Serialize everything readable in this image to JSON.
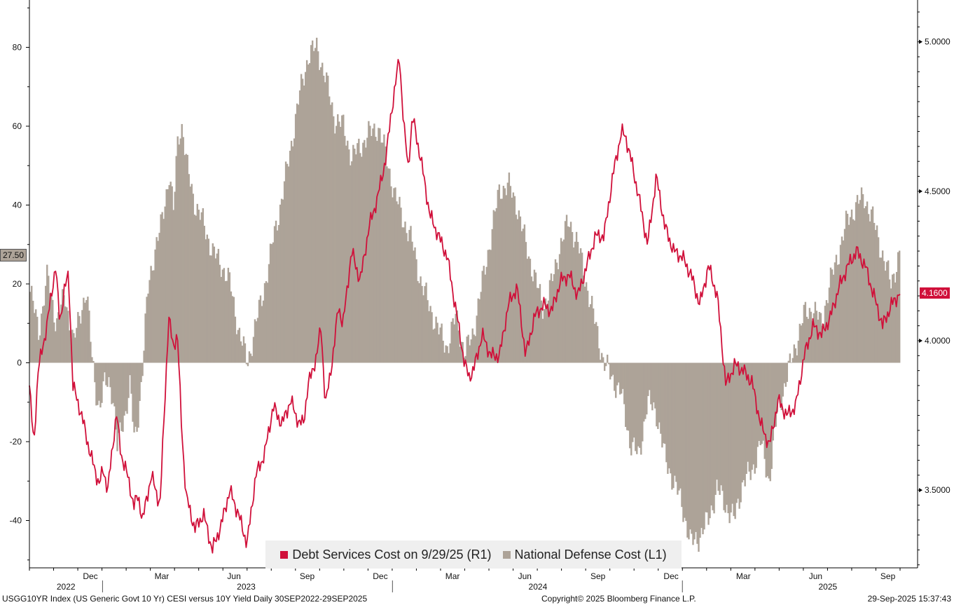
{
  "chart_data": {
    "type": "bar+line",
    "colors": {
      "bars": "#ada398",
      "line": "#d0103a",
      "axis": "#000000"
    },
    "left_axis": {
      "ticks": [
        -40,
        -20,
        0,
        20,
        40,
        60,
        80
      ],
      "range": [
        -52,
        92
      ]
    },
    "right_axis": {
      "ticks": [
        "3.5000",
        "4.0000",
        "4.5000",
        "5.0000"
      ],
      "values": [
        3.5,
        4.0,
        4.5,
        5.0
      ],
      "range": [
        3.24,
        5.14
      ]
    },
    "x_labels": [
      {
        "label": "Dec",
        "t": 0.07
      },
      {
        "label": "Mar",
        "t": 0.152
      },
      {
        "label": "Jun",
        "t": 0.235
      },
      {
        "label": "Sep",
        "t": 0.319
      },
      {
        "label": "Dec",
        "t": 0.403
      },
      {
        "label": "Mar",
        "t": 0.486
      },
      {
        "label": "Jun",
        "t": 0.569
      },
      {
        "label": "Sep",
        "t": 0.653
      },
      {
        "label": "Dec",
        "t": 0.737
      },
      {
        "label": "Mar",
        "t": 0.82
      },
      {
        "label": "Jun",
        "t": 0.903
      },
      {
        "label": "Sep",
        "t": 0.986
      }
    ],
    "year_labels": [
      {
        "label": "2022",
        "t": 0.042
      },
      {
        "label": "2023",
        "t": 0.249
      },
      {
        "label": "2024",
        "t": 0.584
      },
      {
        "label": "2025",
        "t": 0.917
      }
    ],
    "year_dividers": [
      0.084,
      0.417,
      0.75
    ],
    "series": [
      {
        "name": "National Defense Cost (L1)",
        "axis": "left",
        "points": [
          [
            0,
            18
          ],
          [
            0.01,
            8
          ],
          [
            0.02,
            22
          ],
          [
            0.03,
            10
          ],
          [
            0.04,
            17
          ],
          [
            0.05,
            5
          ],
          [
            0.06,
            15
          ],
          [
            0.065,
            18
          ],
          [
            0.07,
            4
          ],
          [
            0.075,
            -6
          ],
          [
            0.08,
            -12
          ],
          [
            0.085,
            -6
          ],
          [
            0.09,
            -4
          ],
          [
            0.095,
            -8
          ],
          [
            0.1,
            -22
          ],
          [
            0.105,
            -16
          ],
          [
            0.11,
            -12
          ],
          [
            0.115,
            -6
          ],
          [
            0.12,
            -20
          ],
          [
            0.125,
            -12
          ],
          [
            0.13,
            0
          ],
          [
            0.135,
            18
          ],
          [
            0.14,
            25
          ],
          [
            0.15,
            34
          ],
          [
            0.16,
            48
          ],
          [
            0.165,
            38
          ],
          [
            0.17,
            58
          ],
          [
            0.175,
            60
          ],
          [
            0.18,
            50
          ],
          [
            0.19,
            40
          ],
          [
            0.2,
            35
          ],
          [
            0.21,
            28
          ],
          [
            0.22,
            25
          ],
          [
            0.23,
            20
          ],
          [
            0.24,
            8
          ],
          [
            0.25,
            0
          ],
          [
            0.26,
            10
          ],
          [
            0.27,
            20
          ],
          [
            0.275,
            25
          ],
          [
            0.28,
            32
          ],
          [
            0.29,
            42
          ],
          [
            0.3,
            55
          ],
          [
            0.31,
            68
          ],
          [
            0.32,
            78
          ],
          [
            0.33,
            80
          ],
          [
            0.34,
            72
          ],
          [
            0.35,
            62
          ],
          [
            0.36,
            60
          ],
          [
            0.37,
            52
          ],
          [
            0.38,
            55
          ],
          [
            0.39,
            58
          ],
          [
            0.4,
            60
          ],
          [
            0.41,
            52
          ],
          [
            0.42,
            42
          ],
          [
            0.43,
            36
          ],
          [
            0.44,
            30
          ],
          [
            0.45,
            20
          ],
          [
            0.46,
            14
          ],
          [
            0.47,
            8
          ],
          [
            0.48,
            4
          ],
          [
            0.49,
            12
          ],
          [
            0.5,
            2
          ],
          [
            0.51,
            8
          ],
          [
            0.52,
            20
          ],
          [
            0.53,
            32
          ],
          [
            0.54,
            44
          ],
          [
            0.55,
            45
          ],
          [
            0.56,
            40
          ],
          [
            0.57,
            30
          ],
          [
            0.58,
            22
          ],
          [
            0.59,
            14
          ],
          [
            0.6,
            20
          ],
          [
            0.61,
            30
          ],
          [
            0.62,
            36
          ],
          [
            0.63,
            30
          ],
          [
            0.64,
            20
          ],
          [
            0.65,
            10
          ],
          [
            0.66,
            0
          ],
          [
            0.67,
            -4
          ],
          [
            0.68,
            -8
          ],
          [
            0.69,
            -20
          ],
          [
            0.7,
            -24
          ],
          [
            0.71,
            -10
          ],
          [
            0.72,
            -12
          ],
          [
            0.73,
            -24
          ],
          [
            0.74,
            -30
          ],
          [
            0.75,
            -36
          ],
          [
            0.76,
            -46
          ],
          [
            0.77,
            -44
          ],
          [
            0.78,
            -40
          ],
          [
            0.79,
            -32
          ],
          [
            0.8,
            -36
          ],
          [
            0.81,
            -40
          ],
          [
            0.82,
            -30
          ],
          [
            0.83,
            -28
          ],
          [
            0.84,
            -20
          ],
          [
            0.85,
            -30
          ],
          [
            0.86,
            -12
          ],
          [
            0.87,
            -4
          ],
          [
            0.88,
            4
          ],
          [
            0.89,
            12
          ],
          [
            0.9,
            14
          ],
          [
            0.91,
            10
          ],
          [
            0.92,
            20
          ],
          [
            0.93,
            28
          ],
          [
            0.94,
            36
          ],
          [
            0.95,
            40
          ],
          [
            0.96,
            42
          ],
          [
            0.97,
            36
          ],
          [
            0.98,
            28
          ],
          [
            0.99,
            20
          ],
          [
            1.0,
            27.5
          ]
        ]
      },
      {
        "name": "Debt Services Cost on 9/29/25 (R1)",
        "axis": "right",
        "points": [
          [
            0,
            3.85
          ],
          [
            0.005,
            3.65
          ],
          [
            0.01,
            3.9
          ],
          [
            0.02,
            4.05
          ],
          [
            0.03,
            4.25
          ],
          [
            0.035,
            4.06
          ],
          [
            0.04,
            4.17
          ],
          [
            0.045,
            4.22
          ],
          [
            0.05,
            3.85
          ],
          [
            0.06,
            3.75
          ],
          [
            0.07,
            3.62
          ],
          [
            0.08,
            3.52
          ],
          [
            0.085,
            3.57
          ],
          [
            0.09,
            3.5
          ],
          [
            0.1,
            3.76
          ],
          [
            0.105,
            3.62
          ],
          [
            0.11,
            3.58
          ],
          [
            0.12,
            3.45
          ],
          [
            0.125,
            3.48
          ],
          [
            0.13,
            3.4
          ],
          [
            0.14,
            3.55
          ],
          [
            0.15,
            3.45
          ],
          [
            0.16,
            4.08
          ],
          [
            0.165,
            3.98
          ],
          [
            0.17,
            4.02
          ],
          [
            0.175,
            3.7
          ],
          [
            0.18,
            3.48
          ],
          [
            0.19,
            3.37
          ],
          [
            0.2,
            3.42
          ],
          [
            0.21,
            3.3
          ],
          [
            0.22,
            3.38
          ],
          [
            0.23,
            3.5
          ],
          [
            0.24,
            3.42
          ],
          [
            0.25,
            3.32
          ],
          [
            0.26,
            3.55
          ],
          [
            0.27,
            3.62
          ],
          [
            0.28,
            3.78
          ],
          [
            0.29,
            3.72
          ],
          [
            0.3,
            3.8
          ],
          [
            0.31,
            3.72
          ],
          [
            0.315,
            3.73
          ],
          [
            0.32,
            3.85
          ],
          [
            0.33,
            3.95
          ],
          [
            0.335,
            4.05
          ],
          [
            0.34,
            3.78
          ],
          [
            0.35,
            3.98
          ],
          [
            0.355,
            4.12
          ],
          [
            0.36,
            4.05
          ],
          [
            0.37,
            4.3
          ],
          [
            0.38,
            4.2
          ],
          [
            0.39,
            4.38
          ],
          [
            0.4,
            4.48
          ],
          [
            0.41,
            4.62
          ],
          [
            0.415,
            4.75
          ],
          [
            0.42,
            4.85
          ],
          [
            0.425,
            4.95
          ],
          [
            0.43,
            4.72
          ],
          [
            0.435,
            4.58
          ],
          [
            0.44,
            4.75
          ],
          [
            0.45,
            4.6
          ],
          [
            0.46,
            4.42
          ],
          [
            0.47,
            4.35
          ],
          [
            0.48,
            4.28
          ],
          [
            0.49,
            4.1
          ],
          [
            0.5,
            3.92
          ],
          [
            0.505,
            3.88
          ],
          [
            0.51,
            3.9
          ],
          [
            0.52,
            4.02
          ],
          [
            0.53,
            3.95
          ],
          [
            0.54,
            3.95
          ],
          [
            0.55,
            4.12
          ],
          [
            0.56,
            4.18
          ],
          [
            0.57,
            3.95
          ],
          [
            0.58,
            4.08
          ],
          [
            0.59,
            4.12
          ],
          [
            0.6,
            4.1
          ],
          [
            0.61,
            4.2
          ],
          [
            0.62,
            4.22
          ],
          [
            0.63,
            4.15
          ],
          [
            0.64,
            4.25
          ],
          [
            0.65,
            4.35
          ],
          [
            0.66,
            4.35
          ],
          [
            0.67,
            4.55
          ],
          [
            0.68,
            4.7
          ],
          [
            0.685,
            4.68
          ],
          [
            0.69,
            4.62
          ],
          [
            0.7,
            4.48
          ],
          [
            0.71,
            4.32
          ],
          [
            0.72,
            4.55
          ],
          [
            0.73,
            4.38
          ],
          [
            0.74,
            4.3
          ],
          [
            0.75,
            4.28
          ],
          [
            0.76,
            4.22
          ],
          [
            0.77,
            4.12
          ],
          [
            0.78,
            4.25
          ],
          [
            0.79,
            4.15
          ],
          [
            0.8,
            3.85
          ],
          [
            0.81,
            3.92
          ],
          [
            0.82,
            3.9
          ],
          [
            0.83,
            3.86
          ],
          [
            0.84,
            3.72
          ],
          [
            0.85,
            3.65
          ],
          [
            0.86,
            3.8
          ],
          [
            0.87,
            3.75
          ],
          [
            0.88,
            3.78
          ],
          [
            0.89,
            3.95
          ],
          [
            0.9,
            4.05
          ],
          [
            0.91,
            4.02
          ],
          [
            0.92,
            4.08
          ],
          [
            0.93,
            4.18
          ],
          [
            0.94,
            4.25
          ],
          [
            0.95,
            4.3
          ],
          [
            0.96,
            4.25
          ],
          [
            0.97,
            4.15
          ],
          [
            0.98,
            4.05
          ],
          [
            0.99,
            4.12
          ],
          [
            1.0,
            4.16
          ]
        ]
      }
    ],
    "value_tags": {
      "left": "27.50",
      "right": "4.1600"
    }
  },
  "legend": {
    "debt_label": "Debt Services Cost on 9/29/25 (R1)",
    "defense_label": "National Defense Cost (L1)"
  },
  "footer": {
    "left": "USGG10YR Index (US Generic Govt 10 Yr) CESI versus 10Y Yield  Daily 30SEP2022-29SEP2025",
    "center": "Copyright© 2025 Bloomberg Finance L.P.",
    "right": "29-Sep-2025 15:37:43"
  }
}
